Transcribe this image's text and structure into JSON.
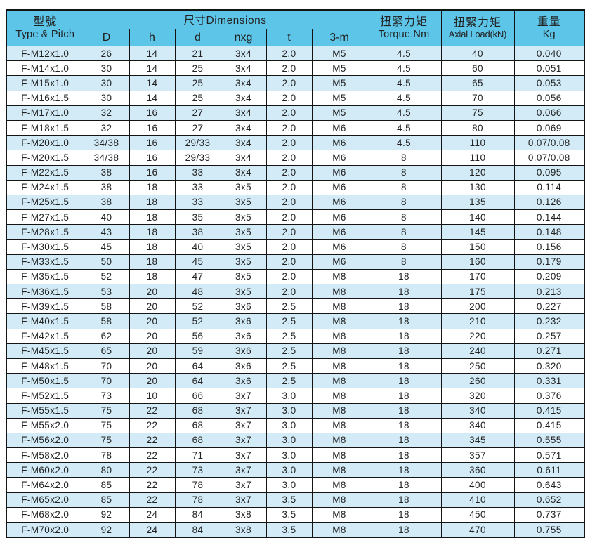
{
  "colors": {
    "header_bg": "#5cc5e8",
    "row_alt_bg": "#d2ebf7",
    "border": "#141414",
    "text": "#222222"
  },
  "table": {
    "header": {
      "type_pitch_zh": "型號",
      "type_pitch_en": "Type & Pitch",
      "dimensions": "尺寸Dimensions",
      "sub_columns": [
        "D",
        "h",
        "d",
        "nxg",
        "t",
        "3-m"
      ],
      "torque_zh": "扭緊力矩",
      "torque_en": "Torque.Nm",
      "axial_zh": "扭緊力矩",
      "axial_en": "Axial Load(kN)",
      "weight_zh": "重量",
      "weight_en": "Kg"
    },
    "columns_order": [
      "model",
      "D",
      "h",
      "d",
      "nxg",
      "t",
      "m",
      "torque",
      "axial",
      "kg"
    ],
    "rows": [
      {
        "model": "F-M12x1.0",
        "D": "26",
        "h": "14",
        "d": "21",
        "nxg": "3x4",
        "t": "2.0",
        "m": "M5",
        "torque": "4.5",
        "axial": "40",
        "kg": "0.040"
      },
      {
        "model": "F-M14x1.0",
        "D": "30",
        "h": "14",
        "d": "25",
        "nxg": "3x4",
        "t": "2.0",
        "m": "M5",
        "torque": "4.5",
        "axial": "60",
        "kg": "0.051"
      },
      {
        "model": "F-M15x1.0",
        "D": "30",
        "h": "14",
        "d": "25",
        "nxg": "3x4",
        "t": "2.0",
        "m": "M5",
        "torque": "4.5",
        "axial": "65",
        "kg": "0.053"
      },
      {
        "model": "F-M16x1.5",
        "D": "30",
        "h": "14",
        "d": "25",
        "nxg": "3x4",
        "t": "2.0",
        "m": "M5",
        "torque": "4.5",
        "axial": "70",
        "kg": "0.056"
      },
      {
        "model": "F-M17x1.0",
        "D": "32",
        "h": "16",
        "d": "27",
        "nxg": "3x4",
        "t": "2.0",
        "m": "M5",
        "torque": "4.5",
        "axial": "75",
        "kg": "0.066"
      },
      {
        "model": "F-M18x1.5",
        "D": "32",
        "h": "16",
        "d": "27",
        "nxg": "3x4",
        "t": "2.0",
        "m": "M6",
        "torque": "4.5",
        "axial": "80",
        "kg": "0.069"
      },
      {
        "model": "F-M20x1.0",
        "D": "34/38",
        "h": "16",
        "d": "29/33",
        "nxg": "3x4",
        "t": "2.0",
        "m": "M6",
        "torque": "4.5",
        "axial": "110",
        "kg": "0.07/0.08"
      },
      {
        "model": "F-M20x1.5",
        "D": "34/38",
        "h": "16",
        "d": "29/33",
        "nxg": "3x4",
        "t": "2.0",
        "m": "M6",
        "torque": "8",
        "axial": "110",
        "kg": "0.07/0.08"
      },
      {
        "model": "F-M22x1.5",
        "D": "38",
        "h": "16",
        "d": "33",
        "nxg": "3x4",
        "t": "2.0",
        "m": "M6",
        "torque": "8",
        "axial": "120",
        "kg": "0.095"
      },
      {
        "model": "F-M24x1.5",
        "D": "38",
        "h": "18",
        "d": "33",
        "nxg": "3x5",
        "t": "2.0",
        "m": "M6",
        "torque": "8",
        "axial": "130",
        "kg": "0.114"
      },
      {
        "model": "F-M25x1.5",
        "D": "38",
        "h": "18",
        "d": "33",
        "nxg": "3x5",
        "t": "2.0",
        "m": "M6",
        "torque": "8",
        "axial": "135",
        "kg": "0.126"
      },
      {
        "model": "F-M27x1.5",
        "D": "40",
        "h": "18",
        "d": "35",
        "nxg": "3x5",
        "t": "2.0",
        "m": "M6",
        "torque": "8",
        "axial": "140",
        "kg": "0.144"
      },
      {
        "model": "F-M28x1.5",
        "D": "43",
        "h": "18",
        "d": "38",
        "nxg": "3x5",
        "t": "2.0",
        "m": "M6",
        "torque": "8",
        "axial": "145",
        "kg": "0.148"
      },
      {
        "model": "F-M30x1.5",
        "D": "45",
        "h": "18",
        "d": "40",
        "nxg": "3x5",
        "t": "2.0",
        "m": "M6",
        "torque": "8",
        "axial": "150",
        "kg": "0.156"
      },
      {
        "model": "F-M33x1.5",
        "D": "50",
        "h": "18",
        "d": "45",
        "nxg": "3x5",
        "t": "2.0",
        "m": "M6",
        "torque": "8",
        "axial": "160",
        "kg": "0.179"
      },
      {
        "model": "F-M35x1.5",
        "D": "52",
        "h": "18",
        "d": "47",
        "nxg": "3x5",
        "t": "2.0",
        "m": "M8",
        "torque": "18",
        "axial": "170",
        "kg": "0.209"
      },
      {
        "model": "F-M36x1.5",
        "D": "53",
        "h": "20",
        "d": "48",
        "nxg": "3x5",
        "t": "2.0",
        "m": "M8",
        "torque": "18",
        "axial": "175",
        "kg": "0.213"
      },
      {
        "model": "F-M39x1.5",
        "D": "58",
        "h": "20",
        "d": "52",
        "nxg": "3x6",
        "t": "2.5",
        "m": "M8",
        "torque": "18",
        "axial": "200",
        "kg": "0.227"
      },
      {
        "model": "F-M40x1.5",
        "D": "58",
        "h": "20",
        "d": "52",
        "nxg": "3x6",
        "t": "2.5",
        "m": "M8",
        "torque": "18",
        "axial": "210",
        "kg": "0.232"
      },
      {
        "model": "F-M42x1.5",
        "D": "62",
        "h": "20",
        "d": "56",
        "nxg": "3x6",
        "t": "2.5",
        "m": "M8",
        "torque": "18",
        "axial": "220",
        "kg": "0.257"
      },
      {
        "model": "F-M45x1.5",
        "D": "65",
        "h": "20",
        "d": "59",
        "nxg": "3x6",
        "t": "2.5",
        "m": "M8",
        "torque": "18",
        "axial": "240",
        "kg": "0.271"
      },
      {
        "model": "F-M48x1.5",
        "D": "70",
        "h": "20",
        "d": "64",
        "nxg": "3x6",
        "t": "2.5",
        "m": "M8",
        "torque": "18",
        "axial": "250",
        "kg": "0.320"
      },
      {
        "model": "F-M50x1.5",
        "D": "70",
        "h": "20",
        "d": "64",
        "nxg": "3x6",
        "t": "2.5",
        "m": "M8",
        "torque": "18",
        "axial": "260",
        "kg": "0.331"
      },
      {
        "model": "F-M52x1.5",
        "D": "73",
        "h": "10",
        "d": "66",
        "nxg": "3x7",
        "t": "3.0",
        "m": "M8",
        "torque": "18",
        "axial": "320",
        "kg": "0.376"
      },
      {
        "model": "F-M55x1.5",
        "D": "75",
        "h": "22",
        "d": "68",
        "nxg": "3x7",
        "t": "3.0",
        "m": "M8",
        "torque": "18",
        "axial": "340",
        "kg": "0.415"
      },
      {
        "model": "F-M55x2.0",
        "D": "75",
        "h": "22",
        "d": "68",
        "nxg": "3x7",
        "t": "3.0",
        "m": "M8",
        "torque": "18",
        "axial": "340",
        "kg": "0.415"
      },
      {
        "model": "F-M56x2.0",
        "D": "75",
        "h": "22",
        "d": "68",
        "nxg": "3x7",
        "t": "3.0",
        "m": "M8",
        "torque": "18",
        "axial": "345",
        "kg": "0.555"
      },
      {
        "model": "F-M58x2.0",
        "D": "78",
        "h": "22",
        "d": "71",
        "nxg": "3x7",
        "t": "3.0",
        "m": "M8",
        "torque": "18",
        "axial": "357",
        "kg": "0.571"
      },
      {
        "model": "F-M60x2.0",
        "D": "80",
        "h": "22",
        "d": "73",
        "nxg": "3x7",
        "t": "3.0",
        "m": "M8",
        "torque": "18",
        "axial": "360",
        "kg": "0.611"
      },
      {
        "model": "F-M64x2.0",
        "D": "85",
        "h": "22",
        "d": "78",
        "nxg": "3x7",
        "t": "3.0",
        "m": "M8",
        "torque": "18",
        "axial": "400",
        "kg": "0.643"
      },
      {
        "model": "F-M65x2.0",
        "D": "85",
        "h": "22",
        "d": "78",
        "nxg": "3x7",
        "t": "3.5",
        "m": "M8",
        "torque": "18",
        "axial": "410",
        "kg": "0.652"
      },
      {
        "model": "F-M68x2.0",
        "D": "92",
        "h": "24",
        "d": "84",
        "nxg": "3x8",
        "t": "3.5",
        "m": "M8",
        "torque": "18",
        "axial": "450",
        "kg": "0.737"
      },
      {
        "model": "F-M70x2.0",
        "D": "92",
        "h": "24",
        "d": "84",
        "nxg": "3x8",
        "t": "3.5",
        "m": "M8",
        "torque": "18",
        "axial": "470",
        "kg": "0.755"
      }
    ]
  }
}
